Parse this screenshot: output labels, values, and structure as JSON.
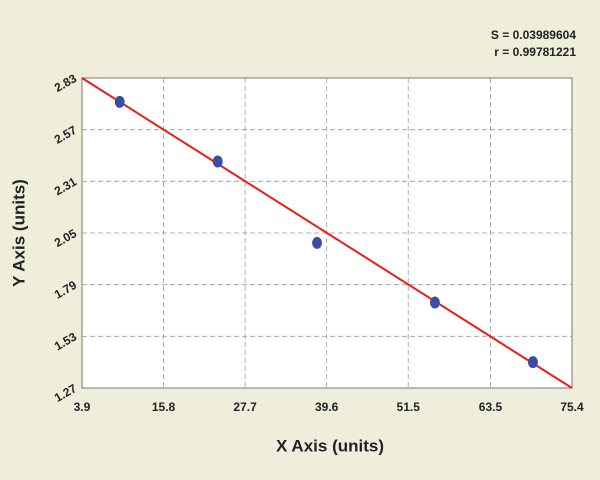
{
  "chart_data": {
    "type": "scatter",
    "x_label": "X Axis (units)",
    "y_label": "Y Axis (units)",
    "annotations": [
      "S = 0.03989604",
      "r = 0.99781221"
    ],
    "series": [
      {
        "color": "#3b4ea3",
        "x": [
          9.4,
          23.7,
          38.2,
          55.4,
          69.7
        ],
        "values": [
          2.71,
          2.41,
          2.0,
          1.7,
          1.4
        ]
      }
    ],
    "fit_line": {
      "color": "#e3201c",
      "x": [
        3.9,
        75.4
      ],
      "values": [
        2.83,
        1.27
      ]
    },
    "xlim": [
      3.9,
      75.4
    ],
    "xticks": [
      3.9,
      15.8,
      27.7,
      39.6,
      51.5,
      63.5,
      75.4
    ],
    "ylim": [
      1.27,
      2.83
    ],
    "yticks": [
      1.27,
      1.53,
      1.79,
      2.05,
      2.31,
      2.57,
      2.83
    ],
    "grid": true
  }
}
